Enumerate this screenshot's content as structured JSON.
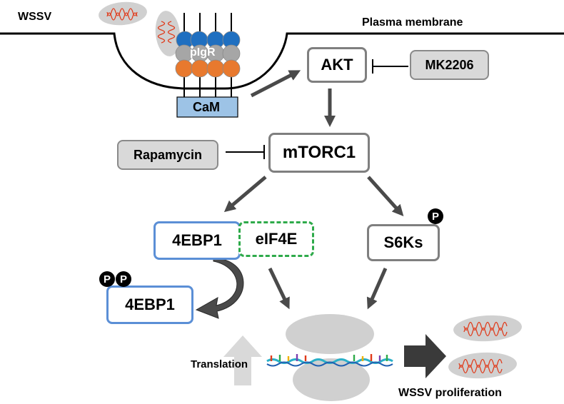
{
  "labels": {
    "wssv": "WSSV",
    "plasma_membrane": "Plasma membrane",
    "pigr": "pIgR",
    "cam": "CaM",
    "akt": "AKT",
    "mk2206": "MK2206",
    "mtorc1": "mTORC1",
    "rapamycin": "Rapamycin",
    "ebp1": "4EBP1",
    "eif4e": "eIF4E",
    "s6ks": "S6Ks",
    "ebp1_p": "4EBP1",
    "phospho": "P",
    "translation": "Translation",
    "wssv_proliferation": "WSSV proliferation"
  },
  "colors": {
    "receptor_blue": "#1f6fc0",
    "receptor_grey": "#a6a6a6",
    "receptor_orange": "#e8792e",
    "cam_fill": "#9dc3e6",
    "arrow_grey": "#4a4a4a",
    "virion_fill": "#d0d0d0",
    "virus_dna": "#e03a1a"
  }
}
